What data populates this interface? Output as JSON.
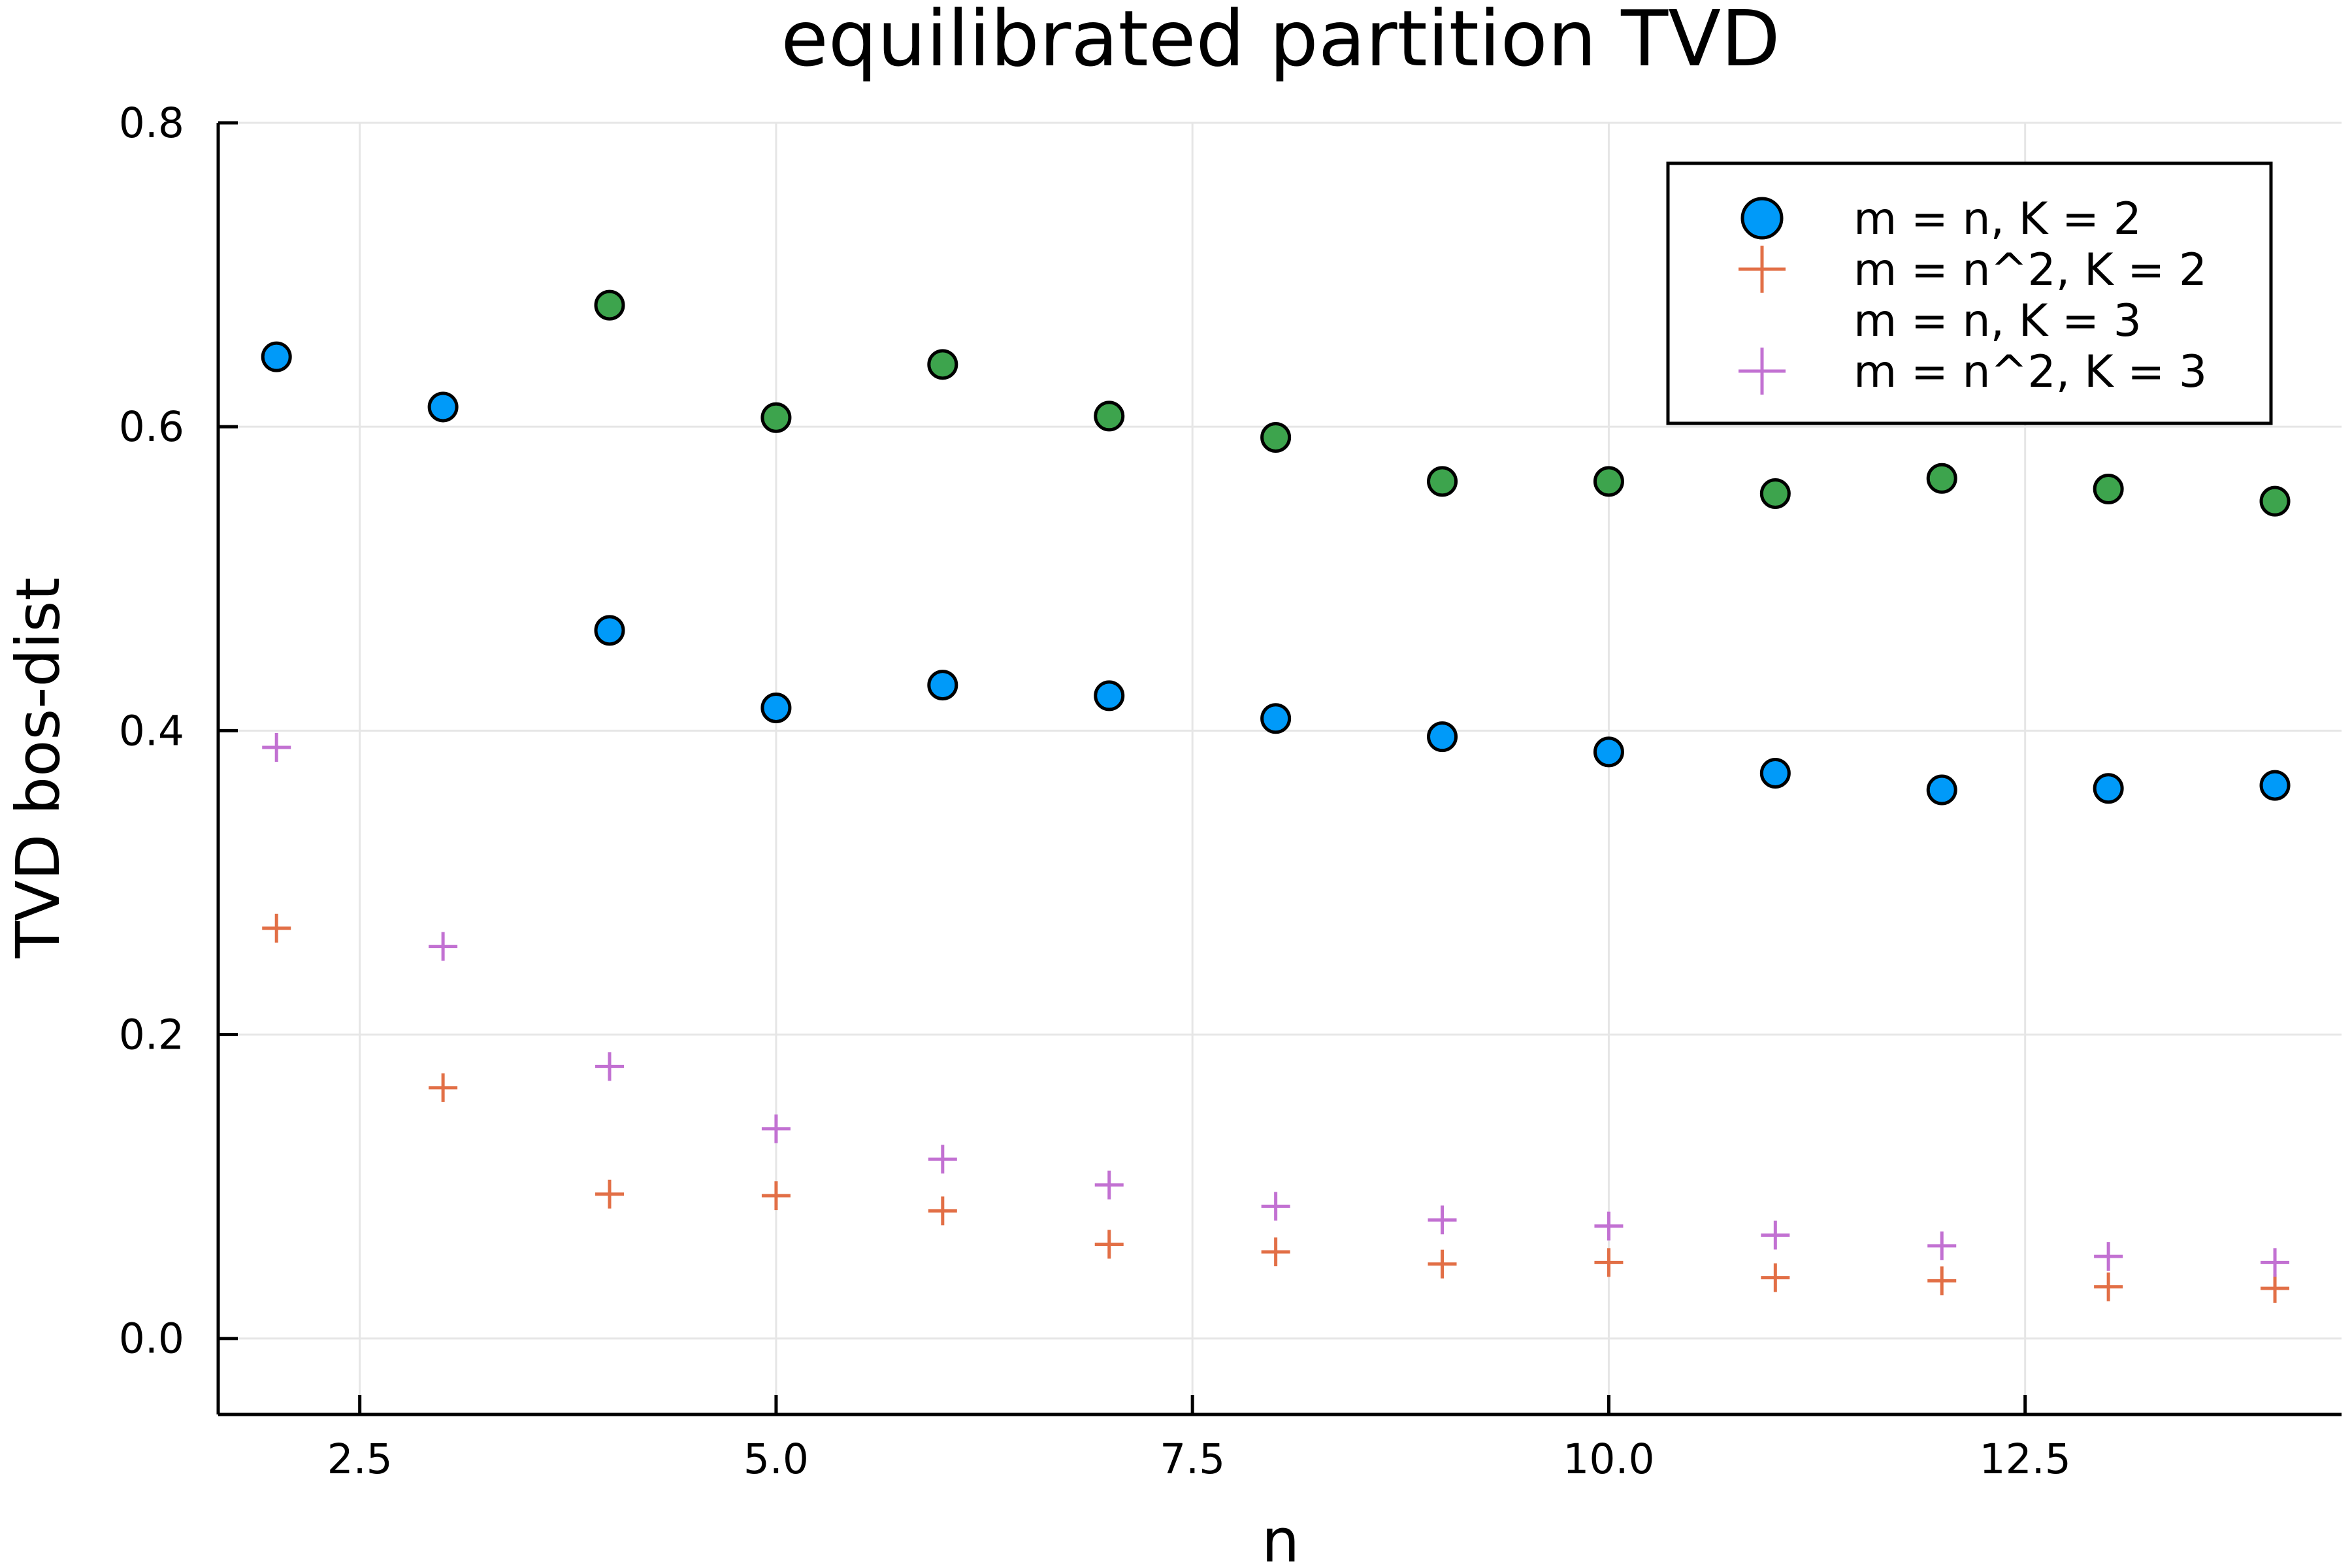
{
  "chart_data": {
    "type": "scatter",
    "title": "equilibrated partition TVD",
    "xlabel": "n",
    "ylabel": "TVD bos-dist",
    "xlim": [
      1.65,
      14.4
    ],
    "ylim": [
      -0.05,
      0.8
    ],
    "xticks": [
      2.5,
      5.0,
      7.5,
      10.0,
      12.5
    ],
    "xtick_labels": [
      "2.5",
      "5.0",
      "7.5",
      "10.0",
      "12.5"
    ],
    "yticks": [
      0.0,
      0.2,
      0.4,
      0.6,
      0.8
    ],
    "ytick_labels": [
      "0.0",
      "0.2",
      "0.4",
      "0.6",
      "0.8"
    ],
    "grid": true,
    "legend_position": "top-right",
    "series": [
      {
        "name": "m = n, K = 2",
        "marker": "circle",
        "color": "#009af9",
        "x": [
          2,
          3,
          4,
          5,
          6,
          7,
          8,
          9,
          10,
          11,
          12,
          13,
          14
        ],
        "y": [
          0.646,
          0.613,
          0.466,
          0.415,
          0.43,
          0.423,
          0.408,
          0.396,
          0.386,
          0.372,
          0.361,
          0.362,
          0.364
        ]
      },
      {
        "name": "m = n^2, K = 2",
        "marker": "plus",
        "color": "#e26f46",
        "x": [
          2,
          3,
          4,
          5,
          6,
          7,
          8,
          9,
          10,
          11,
          12,
          13,
          14
        ],
        "y": [
          0.27,
          0.165,
          0.095,
          0.094,
          0.084,
          0.062,
          0.057,
          0.049,
          0.05,
          0.04,
          0.038,
          0.034,
          0.033
        ]
      },
      {
        "name": "m = n, K = 3",
        "marker": "circle",
        "color": "#3da44d",
        "legend_marker_visible": false,
        "x": [
          4,
          5,
          6,
          7,
          8,
          9,
          10,
          11,
          12,
          13,
          14
        ],
        "y": [
          0.68,
          0.606,
          0.641,
          0.607,
          0.593,
          0.564,
          0.564,
          0.556,
          0.566,
          0.559,
          0.551
        ]
      },
      {
        "name": "m = n^2, K = 3",
        "marker": "plus",
        "color": "#c271d2",
        "x": [
          2,
          3,
          4,
          5,
          6,
          7,
          8,
          9,
          10,
          11,
          12,
          13,
          14
        ],
        "y": [
          0.389,
          0.258,
          0.179,
          0.138,
          0.118,
          0.101,
          0.087,
          0.078,
          0.074,
          0.068,
          0.061,
          0.054,
          0.05
        ]
      }
    ]
  }
}
